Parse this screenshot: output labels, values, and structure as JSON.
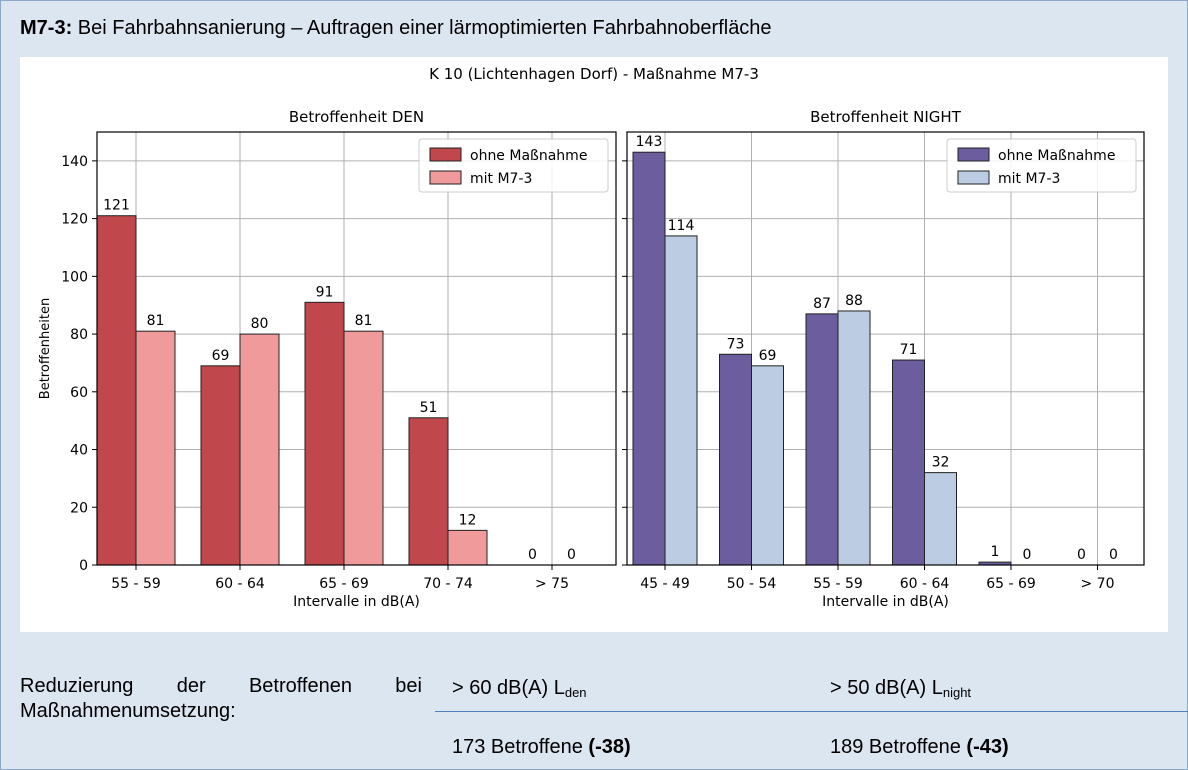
{
  "header": {
    "code": "M7-3:",
    "text": "Bei Fahrbahnsanierung – Auftragen einer lärmoptimierten Fahrbahnoberfläche"
  },
  "chart_data": {
    "suptitle": "K 10 (Lichtenhagen Dorf) - Maßnahme M7-3",
    "charts": [
      {
        "type": "bar",
        "title": "Betroffenheit DEN",
        "xlabel": "Intervalle in dB(A)",
        "ylabel": "Betroffenheiten",
        "ylim": [
          0,
          150
        ],
        "yticks": [
          0,
          20,
          40,
          60,
          80,
          100,
          120,
          140
        ],
        "grid": true,
        "legend_position": "top-right",
        "categories": [
          "55 - 59",
          "60 - 64",
          "65 - 69",
          "70 - 74",
          "> 75"
        ],
        "series": [
          {
            "name": "ohne Maßnahme",
            "color": "#c0474b",
            "values": [
              121,
              69,
              91,
              51,
              0
            ]
          },
          {
            "name": "mit M7-3",
            "color": "#f09a9b",
            "values": [
              81,
              80,
              81,
              12,
              0
            ]
          }
        ]
      },
      {
        "type": "bar",
        "title": "Betroffenheit NIGHT",
        "xlabel": "Intervalle in dB(A)",
        "ylim": [
          0,
          150
        ],
        "grid": true,
        "legend_position": "top-right",
        "categories": [
          "45 - 49",
          "50 - 54",
          "55 - 59",
          "60 - 64",
          "65 - 69",
          "> 70"
        ],
        "series": [
          {
            "name": "ohne Maßnahme",
            "color": "#6b5d9e",
            "values": [
              143,
              73,
              87,
              71,
              1,
              0
            ]
          },
          {
            "name": "mit M7-3",
            "color": "#bccde3",
            "values": [
              114,
              69,
              88,
              32,
              0,
              0
            ]
          }
        ]
      }
    ]
  },
  "summary": {
    "label": "Reduzierung der Betroffenen bei Maßnahmenumsetzung:",
    "col1_head_main": "> 60 dB(A) L",
    "col1_head_sub": "den",
    "col2_head_main": "> 50 dB(A) L",
    "col2_head_sub": "night",
    "col1_value": "173 Betroffene ",
    "col1_delta": "(-38)",
    "col2_value": "189 Betroffene ",
    "col2_delta": "(-43)"
  }
}
